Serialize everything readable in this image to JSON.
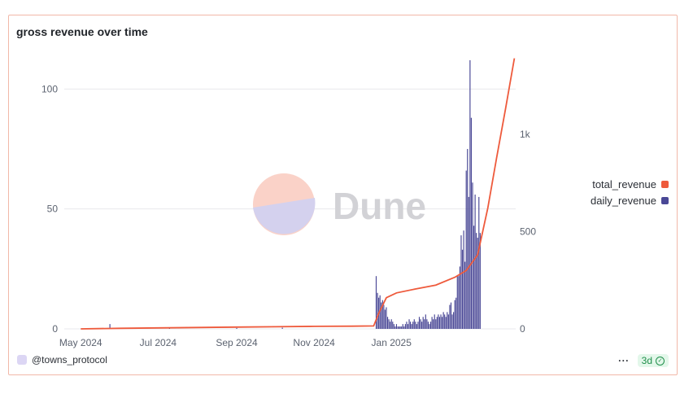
{
  "card": {
    "title": "gross revenue over time"
  },
  "watermark": {
    "text": "Dune"
  },
  "footer": {
    "author": "@towns_protocol",
    "more": "···",
    "age": "3d",
    "check_icon": "check-circle-icon"
  },
  "colors": {
    "total_revenue": "#ee5a3c",
    "daily_revenue": "#4a4896",
    "grid": "#e8e8ec"
  },
  "chart_data": {
    "type": "bar+line",
    "title": "gross revenue over time",
    "x_ticks": [
      "May 2024",
      "Jul 2024",
      "Sep 2024",
      "Nov 2024",
      "Jan 2025"
    ],
    "y_left": {
      "ticks": [
        "0",
        "50",
        "100"
      ],
      "ylim": [
        0,
        112
      ]
    },
    "y_right": {
      "ticks": [
        "0",
        "500",
        "1k"
      ],
      "ylim": [
        0,
        1380
      ]
    },
    "grid": true,
    "legend_position": "right",
    "series": [
      {
        "name": "total_revenue",
        "type": "line",
        "axis": "right",
        "points": [
          [
            "2024-05-01",
            0
          ],
          [
            "2024-06-01",
            3
          ],
          [
            "2024-07-01",
            5
          ],
          [
            "2024-08-01",
            7
          ],
          [
            "2024-09-01",
            9
          ],
          [
            "2024-10-01",
            11
          ],
          [
            "2024-11-01",
            13
          ],
          [
            "2024-12-01",
            14
          ],
          [
            "2024-12-18",
            15
          ],
          [
            "2024-12-22",
            80
          ],
          [
            "2024-12-28",
            160
          ],
          [
            "2025-01-05",
            185
          ],
          [
            "2025-01-20",
            205
          ],
          [
            "2025-02-05",
            225
          ],
          [
            "2025-02-20",
            265
          ],
          [
            "2025-03-01",
            300
          ],
          [
            "2025-03-10",
            380
          ],
          [
            "2025-03-18",
            620
          ],
          [
            "2025-03-25",
            880
          ],
          [
            "2025-04-01",
            1130
          ],
          [
            "2025-04-08",
            1390
          ]
        ]
      },
      {
        "name": "daily_revenue",
        "type": "bar",
        "axis": "left",
        "points": [
          [
            "2024-05-24",
            2
          ],
          [
            "2024-07-10",
            0.5
          ],
          [
            "2024-09-01",
            0.4
          ],
          [
            "2024-10-07",
            0.5
          ],
          [
            "2024-12-20",
            22
          ],
          [
            "2024-12-21",
            15
          ],
          [
            "2024-12-22",
            13
          ],
          [
            "2024-12-23",
            14
          ],
          [
            "2024-12-24",
            11
          ],
          [
            "2024-12-25",
            12
          ],
          [
            "2024-12-26",
            10
          ],
          [
            "2024-12-27",
            8
          ],
          [
            "2024-12-28",
            9
          ],
          [
            "2024-12-29",
            5
          ],
          [
            "2024-12-30",
            4
          ],
          [
            "2024-12-31",
            3
          ],
          [
            "2025-01-01",
            4
          ],
          [
            "2025-01-02",
            3
          ],
          [
            "2025-01-03",
            2
          ],
          [
            "2025-01-04",
            1
          ],
          [
            "2025-01-05",
            2
          ],
          [
            "2025-01-06",
            1
          ],
          [
            "2025-01-07",
            1
          ],
          [
            "2025-01-08",
            1
          ],
          [
            "2025-01-09",
            1
          ],
          [
            "2025-01-10",
            2
          ],
          [
            "2025-01-11",
            1
          ],
          [
            "2025-01-12",
            2
          ],
          [
            "2025-01-13",
            3
          ],
          [
            "2025-01-14",
            2
          ],
          [
            "2025-01-15",
            4
          ],
          [
            "2025-01-16",
            3
          ],
          [
            "2025-01-17",
            2
          ],
          [
            "2025-01-18",
            3
          ],
          [
            "2025-01-19",
            4
          ],
          [
            "2025-01-20",
            3
          ],
          [
            "2025-01-21",
            2
          ],
          [
            "2025-01-22",
            3
          ],
          [
            "2025-01-23",
            5
          ],
          [
            "2025-01-24",
            4
          ],
          [
            "2025-01-25",
            3
          ],
          [
            "2025-01-26",
            5
          ],
          [
            "2025-01-27",
            4
          ],
          [
            "2025-01-28",
            6
          ],
          [
            "2025-01-29",
            4
          ],
          [
            "2025-01-30",
            3
          ],
          [
            "2025-01-31",
            2
          ],
          [
            "2025-02-01",
            3
          ],
          [
            "2025-02-02",
            5
          ],
          [
            "2025-02-03",
            4
          ],
          [
            "2025-02-04",
            6
          ],
          [
            "2025-02-05",
            4
          ],
          [
            "2025-02-06",
            5
          ],
          [
            "2025-02-07",
            6
          ],
          [
            "2025-02-08",
            5
          ],
          [
            "2025-02-09",
            6
          ],
          [
            "2025-02-10",
            5
          ],
          [
            "2025-02-11",
            7
          ],
          [
            "2025-02-12",
            6
          ],
          [
            "2025-02-13",
            5
          ],
          [
            "2025-02-14",
            7
          ],
          [
            "2025-02-15",
            6
          ],
          [
            "2025-02-16",
            10
          ],
          [
            "2025-02-17",
            11
          ],
          [
            "2025-02-18",
            6
          ],
          [
            "2025-02-19",
            7
          ],
          [
            "2025-02-20",
            12
          ],
          [
            "2025-02-21",
            13
          ],
          [
            "2025-02-22",
            22
          ],
          [
            "2025-02-23",
            22
          ],
          [
            "2025-02-24",
            26
          ],
          [
            "2025-02-25",
            39
          ],
          [
            "2025-02-26",
            33
          ],
          [
            "2025-02-27",
            41
          ],
          [
            "2025-02-28",
            28
          ],
          [
            "2025-03-01",
            66
          ],
          [
            "2025-03-02",
            75
          ],
          [
            "2025-03-03",
            55
          ],
          [
            "2025-03-04",
            112
          ],
          [
            "2025-03-05",
            88
          ],
          [
            "2025-03-06",
            61
          ],
          [
            "2025-03-07",
            43
          ],
          [
            "2025-03-08",
            56
          ],
          [
            "2025-03-09",
            40
          ],
          [
            "2025-03-10",
            38
          ],
          [
            "2025-03-11",
            55
          ],
          [
            "2025-03-12",
            40
          ]
        ]
      }
    ]
  }
}
